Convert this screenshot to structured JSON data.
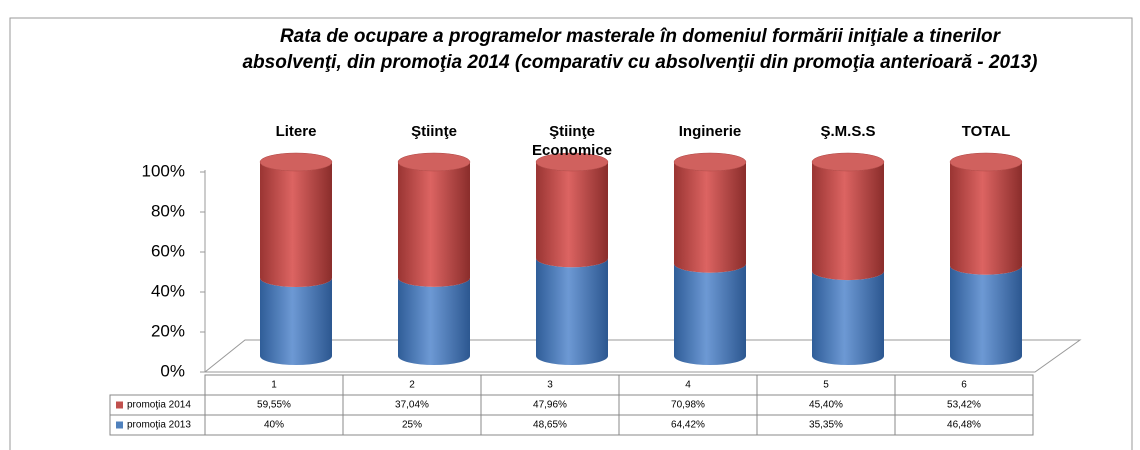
{
  "chart_data": {
    "type": "cylinder",
    "stacking": "percent",
    "title": [
      "Rata de ocupare a programelor masterale în domeniul formării iniţiale a tinerilor",
      "absolvenţi, din promoţia 2014 (comparativ cu absolvenţii din promoţia anterioară -  2013)"
    ],
    "annotations": [
      "Litere",
      "Ştiinţe",
      "Ştiinţe Economice",
      "Inginerie",
      "Ş.M.S.S",
      "TOTAL"
    ],
    "categories": [
      "1",
      "2",
      "3",
      "4",
      "5",
      "6"
    ],
    "series": [
      {
        "name": "promoţia 2014",
        "color": "#c0504d",
        "values": [
          59.55,
          37.04,
          47.96,
          70.98,
          45.4,
          53.42
        ],
        "value_labels": [
          "59,55%",
          "37,04%",
          "47,96%",
          "70,98%",
          "45,40%",
          "53,42%"
        ]
      },
      {
        "name": "promoţia 2013",
        "color": "#4f81bd",
        "values": [
          40,
          25,
          48.65,
          64.42,
          35.35,
          46.48
        ],
        "value_labels": [
          "40%",
          "25%",
          "48,65%",
          "64,42%",
          "35,35%",
          "46,48%"
        ]
      }
    ],
    "ylim": [
      0,
      100
    ],
    "yticks": [
      {
        "value": 0,
        "label": "0%"
      },
      {
        "value": 20,
        "label": "20%"
      },
      {
        "value": 40,
        "label": "40%"
      },
      {
        "value": 60,
        "label": "60%"
      },
      {
        "value": 80,
        "label": "80%"
      },
      {
        "value": 100,
        "label": "100%"
      }
    ],
    "grid": false
  }
}
